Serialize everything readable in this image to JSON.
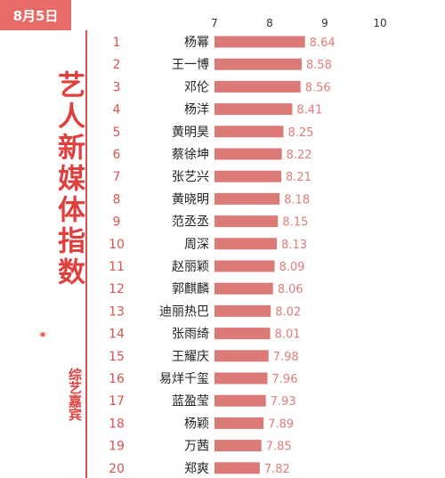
{
  "header": {
    "date": "8月5日",
    "title": "艺人新媒体指数",
    "star": "*",
    "subtitle": "综艺嘉宾"
  },
  "colors": {
    "accent": "#e0403d",
    "bar": "#dc7a78",
    "value_label": "#e17c7a",
    "badge_bg": "#e86b69"
  },
  "chart_data": {
    "type": "bar",
    "orientation": "horizontal",
    "ranks": [
      "1",
      "2",
      "3",
      "4",
      "5",
      "6",
      "7",
      "8",
      "9",
      "10",
      "11",
      "12",
      "13",
      "14",
      "15",
      "16",
      "17",
      "18",
      "19",
      "20"
    ],
    "categories": [
      "杨幂",
      "王一博",
      "邓伦",
      "杨洋",
      "黄明昊",
      "蔡徐坤",
      "张艺兴",
      "黄晓明",
      "范丞丞",
      "周深",
      "赵丽颖",
      "郭麒麟",
      "迪丽热巴",
      "张雨绮",
      "王耀庆",
      "易烊千玺",
      "蓝盈莹",
      "杨颖",
      "万茜",
      "郑爽"
    ],
    "values": [
      8.64,
      8.58,
      8.56,
      8.41,
      8.25,
      8.22,
      8.21,
      8.18,
      8.15,
      8.13,
      8.09,
      8.06,
      8.02,
      8.01,
      7.98,
      7.96,
      7.93,
      7.89,
      7.85,
      7.82
    ],
    "value_labels": [
      "8.64",
      "8.58",
      "8.56",
      "8.41",
      "8.25",
      "8.22",
      "8.21",
      "8.18",
      "8.15",
      "8.13",
      "8.09",
      "8.06",
      "8.02",
      "8.01",
      "7.98",
      "7.96",
      "7.93",
      "7.89",
      "7.85",
      "7.82"
    ],
    "xlim": [
      7,
      10
    ],
    "xticks": [
      7,
      8,
      9,
      10
    ],
    "xtick_labels": [
      "7",
      "8",
      "9",
      "10"
    ],
    "grid": false
  }
}
